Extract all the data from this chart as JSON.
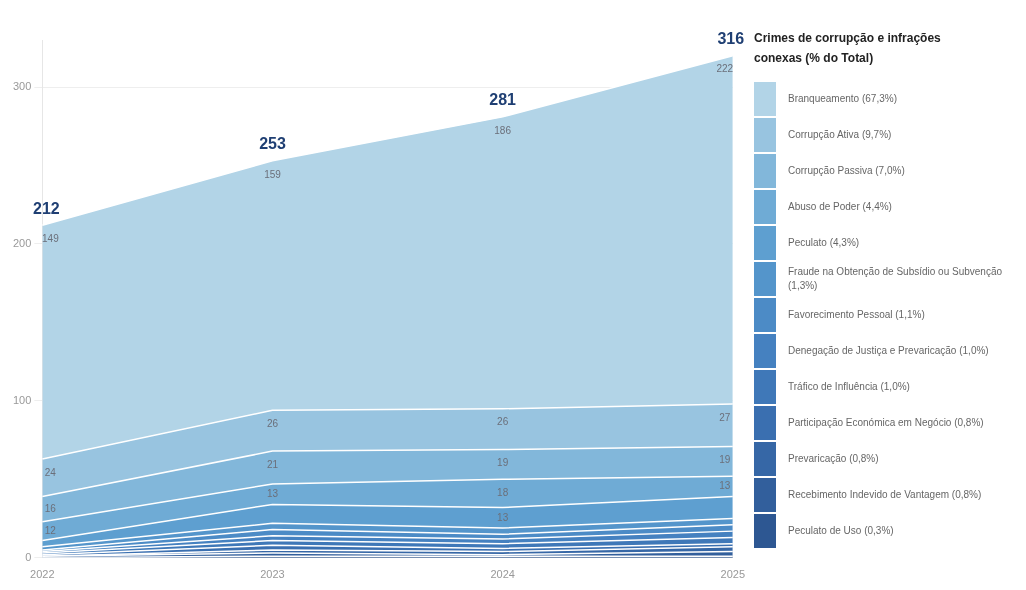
{
  "chart_data": {
    "type": "area",
    "stacked": true,
    "categories": [
      "2022",
      "2023",
      "2024",
      "2025"
    ],
    "ylim": [
      0,
      330
    ],
    "yticks": [
      0,
      100,
      200,
      300
    ],
    "grid": "y",
    "legend": "right",
    "marker": "none",
    "legend_title": "Crimes de corrupção e  infrações conexas (% do Total)",
    "totals": [
      "212",
      "253",
      "281",
      "316"
    ],
    "series": [
      {
        "name": "Peculato de Uso (0,3%)",
        "color": "#2d5792",
        "values": [
          0,
          1,
          1,
          1
        ]
      },
      {
        "name": "Recebimento Indevido de Vantagem (0,8%)",
        "color": "#325f9c",
        "values": [
          1,
          2,
          1,
          3
        ]
      },
      {
        "name": "Prevaricação (0,8%)",
        "color": "#3667a6",
        "values": [
          0,
          2,
          2,
          3
        ]
      },
      {
        "name": "Participação Económica em Negócio (0,8%)",
        "color": "#3a6fb0",
        "values": [
          1,
          3,
          2,
          2
        ]
      },
      {
        "name": "Tráfico de Influência (1,0%)",
        "color": "#3f78b8",
        "values": [
          1,
          3,
          3,
          4
        ]
      },
      {
        "name": "Denegação de Justiça e Prevaricação (1,0%)",
        "color": "#4581c0",
        "values": [
          1,
          3,
          3,
          4
        ]
      },
      {
        "name": "Favorecimento Pessoal (1,1%)",
        "color": "#4c8bc6",
        "values": [
          1,
          4,
          3,
          4
        ]
      },
      {
        "name": "Fraude na Obtenção de Subsídio ou Subvenção (1,3%)",
        "color": "#5495cb",
        "values": [
          2,
          4,
          4,
          4
        ]
      },
      {
        "name": "Peculato (4,3%)",
        "color": "#5e9fd0",
        "values": [
          4,
          12,
          13,
          14
        ],
        "value_labels": [
          null,
          null,
          "13",
          null
        ]
      },
      {
        "name": "Abuso de Poder (4,4%)",
        "color": "#6fabd5",
        "values": [
          12,
          13,
          18,
          13
        ],
        "value_labels": [
          "12",
          "13",
          "18",
          "13"
        ]
      },
      {
        "name": "Corrupção Passiva (7,0%)",
        "color": "#82b7da",
        "values": [
          16,
          21,
          19,
          19
        ],
        "value_labels": [
          "16",
          "21",
          "19",
          "19"
        ]
      },
      {
        "name": "Corrupção Ativa (9,7%)",
        "color": "#98c4e0",
        "values": [
          24,
          26,
          26,
          27
        ],
        "value_labels": [
          "24",
          "26",
          "26",
          "27"
        ]
      },
      {
        "name": "Branqueamento (67,3%)",
        "color": "#b2d4e7",
        "values": [
          149,
          159,
          186,
          222
        ],
        "value_labels": [
          "149",
          "159",
          "186",
          "222"
        ]
      }
    ]
  }
}
